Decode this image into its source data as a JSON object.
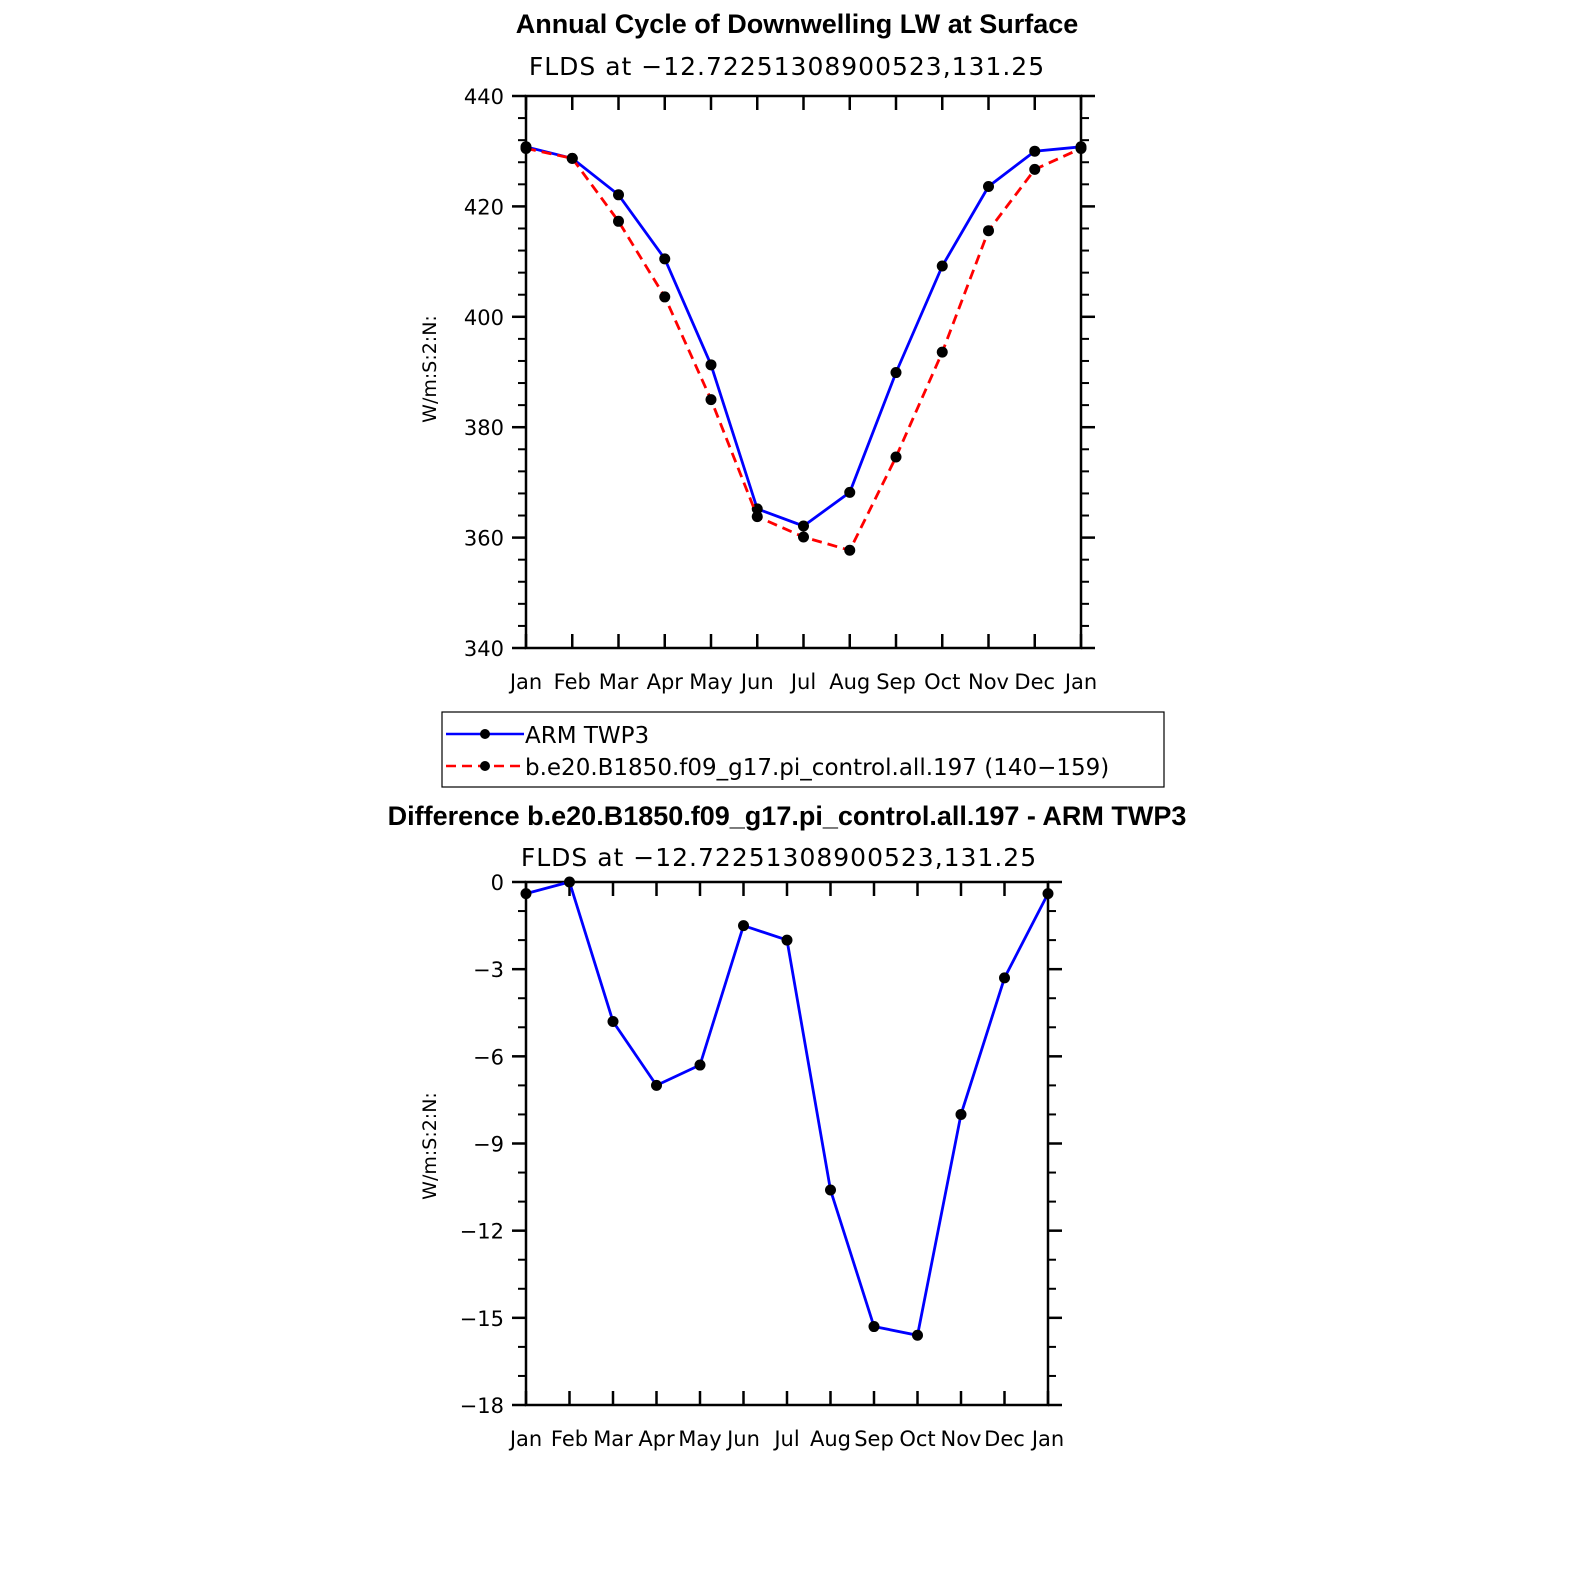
{
  "chart_data": [
    {
      "type": "line",
      "title": "Annual Cycle of Downwelling LW at Surface",
      "subtitle": "FLDS at −12.72251308900523,131.25",
      "ylabel": "W/m:S:2:N:",
      "xlabel": "",
      "ylim": [
        340,
        440
      ],
      "yticks": [
        "340",
        "360",
        "380",
        "400",
        "420",
        "440"
      ],
      "categories": [
        "Jan",
        "Feb",
        "Mar",
        "Apr",
        "May",
        "Jun",
        "Jul",
        "Aug",
        "Sep",
        "Oct",
        "Nov",
        "Dec",
        "Jan"
      ],
      "series": [
        {
          "name": "ARM TWP3",
          "color": "#0000ff",
          "style": "solid",
          "values": [
            430.8,
            428.7,
            422.1,
            410.5,
            391.3,
            365.2,
            362.1,
            368.2,
            389.9,
            409.2,
            423.6,
            430.0,
            430.8
          ]
        },
        {
          "name": "b.e20.B1850.f09_g17.pi_control.all.197 (140−159)",
          "color": "#ff0000",
          "style": "dashed",
          "values": [
            430.5,
            428.7,
            417.3,
            403.6,
            385.0,
            363.8,
            360.1,
            357.7,
            374.6,
            393.6,
            415.6,
            426.7,
            430.5
          ]
        }
      ],
      "legend": "below"
    },
    {
      "type": "line",
      "title": "Difference b.e20.B1850.f09_g17.pi_control.all.197 - ARM TWP3",
      "subtitle": "FLDS at −12.72251308900523,131.25",
      "ylabel": "W/m:S:2:N:",
      "xlabel": "",
      "ylim": [
        -18,
        0
      ],
      "yticks": [
        "0",
        "−3",
        "−6",
        "−9",
        "−12",
        "−15",
        "−18"
      ],
      "categories": [
        "Jan",
        "Feb",
        "Mar",
        "Apr",
        "May",
        "Jun",
        "Jul",
        "Aug",
        "Sep",
        "Oct",
        "Nov",
        "Dec",
        "Jan"
      ],
      "series": [
        {
          "name": "Difference",
          "color": "#0000ff",
          "style": "solid",
          "values": [
            -0.4,
            0.0,
            -4.8,
            -7.0,
            -6.3,
            -1.5,
            -2.0,
            -10.6,
            -15.3,
            -15.6,
            -8.0,
            -3.3,
            -0.4
          ]
        }
      ]
    }
  ]
}
